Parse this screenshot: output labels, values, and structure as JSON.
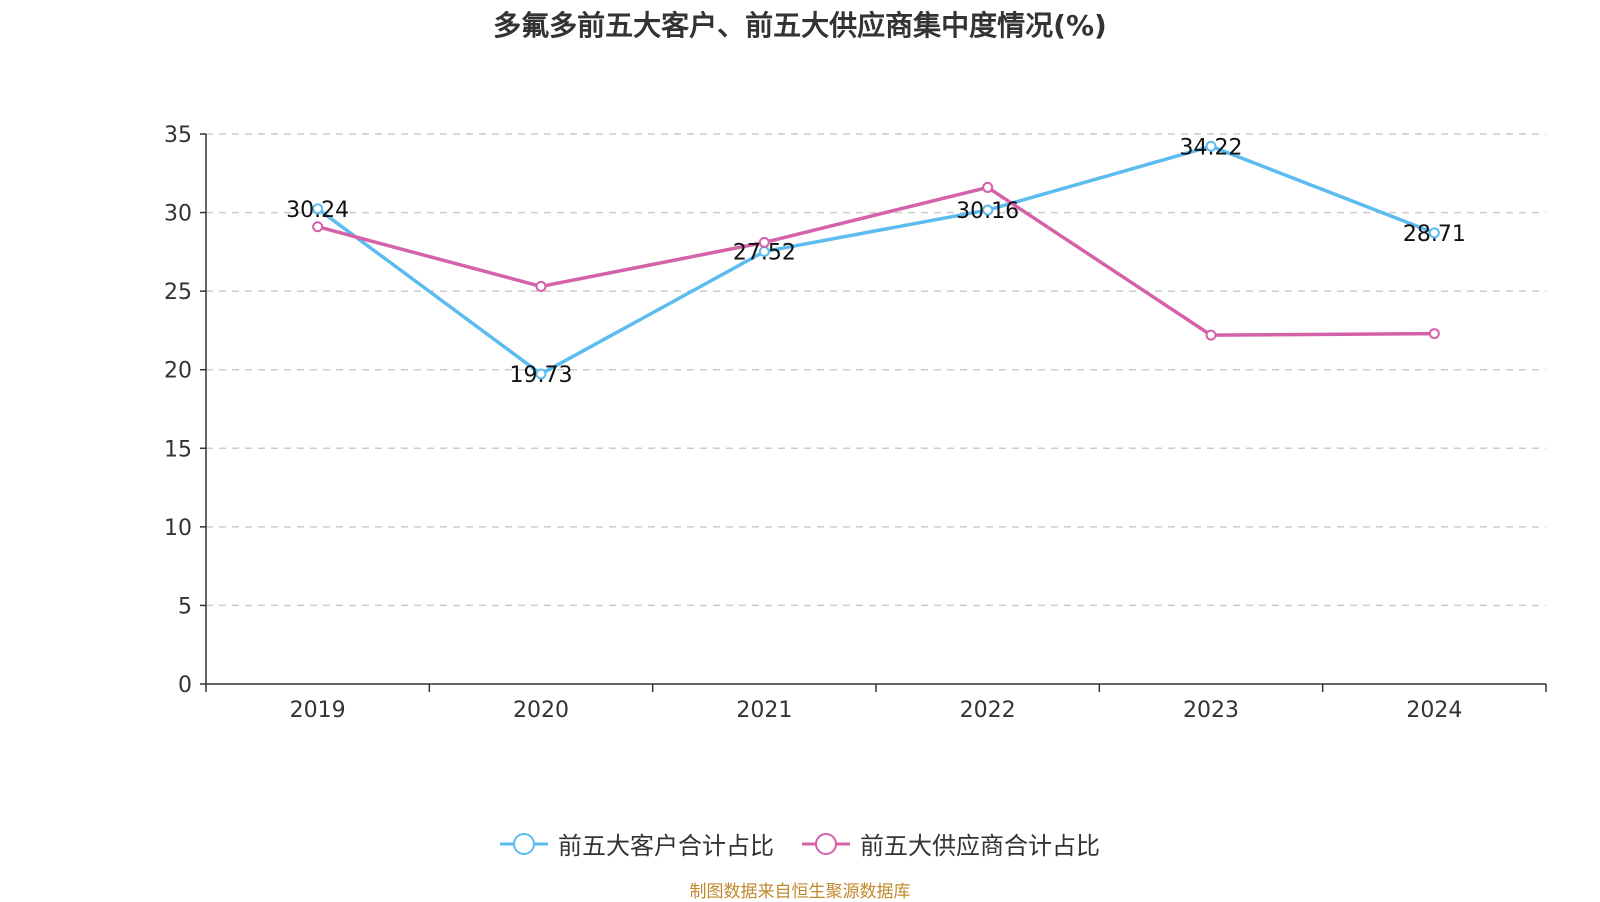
{
  "title": "多氟多前五大客户、前五大供应商集中度情况(%)",
  "source": "制图数据来自恒生聚源数据库",
  "colors": {
    "customers": "#5bbcef",
    "suppliers": "#d462a8",
    "grid": "#cccccc",
    "axis": "#333333"
  },
  "chart_data": {
    "type": "line",
    "title": "多氟多前五大客户、前五大供应商集中度情况(%)",
    "categories": [
      "2019",
      "2020",
      "2021",
      "2022",
      "2023",
      "2024"
    ],
    "ylim": [
      0,
      35
    ],
    "yticks": [
      0,
      5,
      10,
      15,
      20,
      25,
      30,
      35
    ],
    "grid": true,
    "legend_position": "bottom",
    "series": [
      {
        "name": "前五大客户合计占比",
        "values": [
          30.24,
          19.73,
          27.52,
          30.16,
          34.22,
          28.71
        ],
        "labels": [
          "30.24",
          "19.73",
          "27.52",
          "30.16",
          "34.22",
          "28.71"
        ]
      },
      {
        "name": "前五大供应商合计占比",
        "values": [
          29.1,
          25.3,
          28.1,
          31.6,
          22.2,
          22.3
        ]
      }
    ]
  }
}
